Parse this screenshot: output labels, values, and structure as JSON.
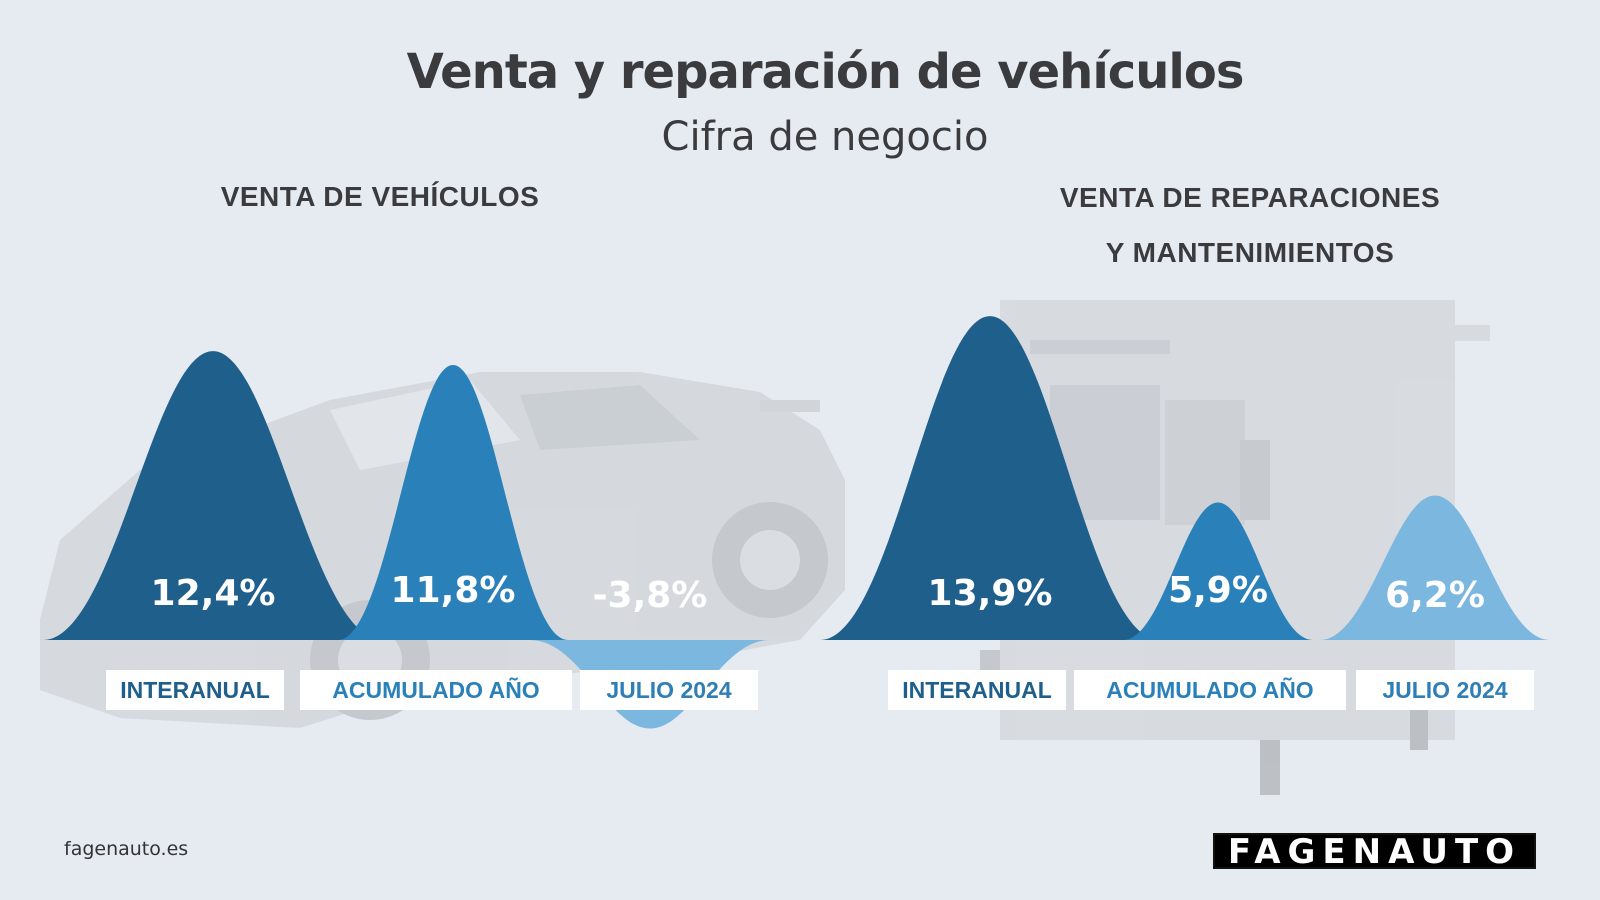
{
  "header": {
    "title": "Venta y reparación de vehículos",
    "subtitle": "Cifra de negocio"
  },
  "chart_data": [
    {
      "type": "area",
      "title": "VENTA DE VEHÍCULOS",
      "categories": [
        "INTERANUAL",
        "ACUMULADO AÑO",
        "JULIO 2024"
      ],
      "values": [
        12.4,
        11.8,
        -3.8
      ],
      "value_labels": [
        "12,4%",
        "11,8%",
        "-3,8%"
      ],
      "colors": [
        "#1f5f8b",
        "#2a80b9",
        "#7cb7e0"
      ],
      "unit": "%"
    },
    {
      "type": "area",
      "title": "VENTA DE REPARACIONES Y MANTENIMIENTOS",
      "title_lines": [
        "VENTA DE REPARACIONES",
        "Y MANTENIMIENTOS"
      ],
      "categories": [
        "INTERANUAL",
        "ACUMULADO AÑO",
        "JULIO 2024"
      ],
      "values": [
        13.9,
        5.9,
        6.2
      ],
      "value_labels": [
        "13,9%",
        "5,9%",
        "6,2%"
      ],
      "colors": [
        "#1f5f8b",
        "#2a80b9",
        "#7cb7e0"
      ],
      "unit": "%"
    }
  ],
  "footer": {
    "url": "fagenauto.es",
    "logo": "FAGENAUTO"
  },
  "label_color": "#1f5f8b"
}
